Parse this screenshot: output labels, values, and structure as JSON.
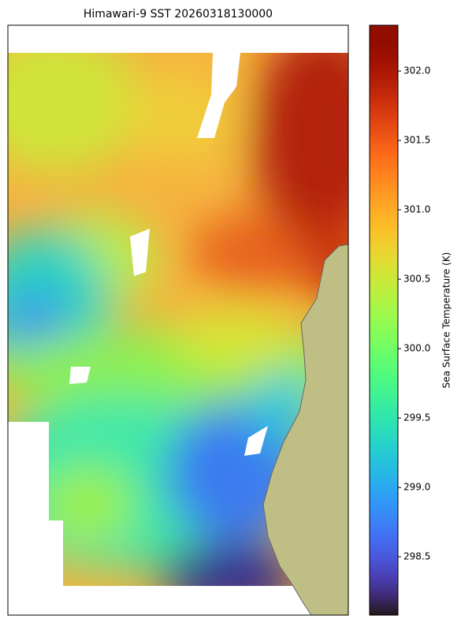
{
  "chart_data": {
    "type": "heatmap",
    "title": "Himawari-9 SST 20260318130000",
    "colorbar": {
      "label": "Sea Surface Temperature (K)",
      "colormap": "turbo",
      "lim": [
        298.08,
        302.33
      ],
      "ticks": [
        {
          "value": 298.5,
          "label": "298.5"
        },
        {
          "value": 299.0,
          "label": "299.0"
        },
        {
          "value": 299.5,
          "label": "299.5"
        },
        {
          "value": 300.0,
          "label": "300.0"
        },
        {
          "value": 300.5,
          "label": "300.5"
        },
        {
          "value": 301.0,
          "label": "301.0"
        },
        {
          "value": 301.5,
          "label": "301.5"
        },
        {
          "value": 302.0,
          "label": "302.0"
        }
      ]
    }
  }
}
